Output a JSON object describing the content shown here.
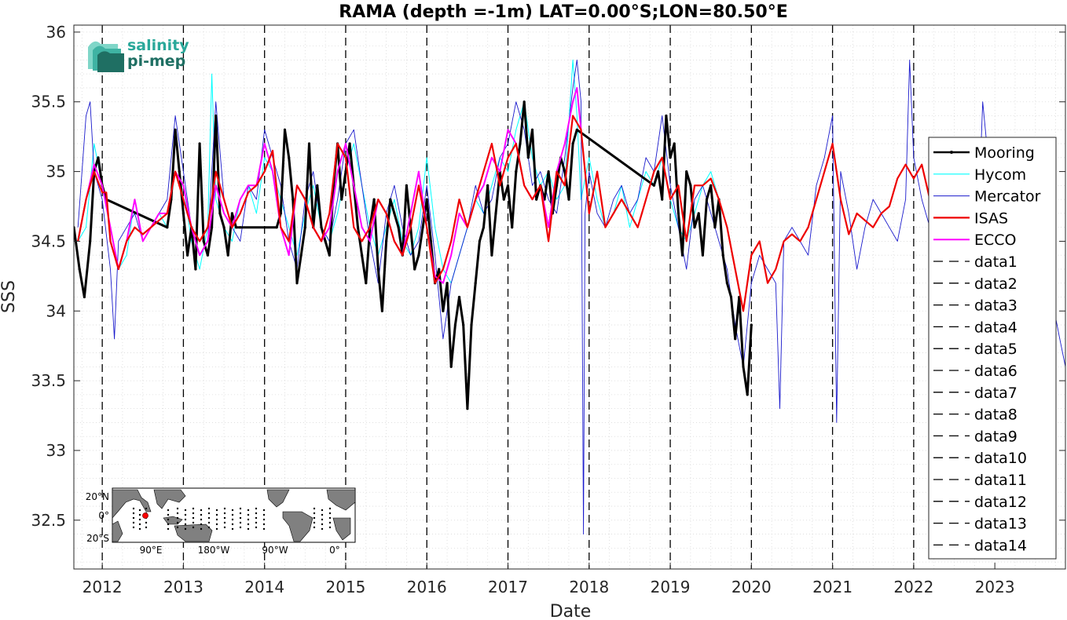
{
  "chart_data": {
    "type": "line",
    "title": "RAMA (depth =-1m) LAT=0.00°S;LON=80.50°E",
    "xlabel": "Date",
    "ylabel": "SSS",
    "xlim": [
      2011.65,
      2023.87
    ],
    "ylim": [
      32.15,
      36.05
    ],
    "x_ticks": [
      2012,
      2013,
      2014,
      2015,
      2016,
      2017,
      2018,
      2019,
      2020,
      2021,
      2022,
      2023
    ],
    "y_ticks": [
      32.5,
      33,
      33.5,
      34,
      34.5,
      35,
      35.5,
      36
    ],
    "grid": "dotted",
    "legend_placement": "right",
    "year_lines": [
      2012,
      2013,
      2014,
      2015,
      2016,
      2017,
      2018,
      2019,
      2020,
      2021,
      2022
    ],
    "series": [
      {
        "name": "Mooring",
        "color": "#000000",
        "style": "solid-dots",
        "x": [
          2011.65,
          2011.72,
          2011.78,
          2011.85,
          2011.9,
          2011.95,
          2012.0,
          2012.05,
          2012.8,
          2012.85,
          2012.9,
          2012.95,
          2013.0,
          2013.05,
          2013.1,
          2013.15,
          2013.2,
          2013.25,
          2013.3,
          2013.35,
          2013.4,
          2013.45,
          2013.5,
          2013.55,
          2013.6,
          2013.65,
          2013.7,
          2014.15,
          2014.2,
          2014.25,
          2014.3,
          2014.35,
          2014.4,
          2014.45,
          2014.5,
          2014.55,
          2014.6,
          2014.65,
          2014.7,
          2014.75,
          2014.8,
          2014.85,
          2014.9,
          2014.95,
          2015.0,
          2015.05,
          2015.1,
          2015.15,
          2015.2,
          2015.25,
          2015.3,
          2015.35,
          2015.4,
          2015.45,
          2015.5,
          2015.55,
          2015.6,
          2015.65,
          2015.7,
          2015.75,
          2015.8,
          2015.85,
          2015.9,
          2015.95,
          2016.0,
          2016.05,
          2016.1,
          2016.15,
          2016.2,
          2016.25,
          2016.3,
          2016.35,
          2016.4,
          2016.45,
          2016.5,
          2016.55,
          2016.6,
          2016.65,
          2016.7,
          2016.75,
          2016.8,
          2016.85,
          2016.9,
          2016.95,
          2017.0,
          2017.05,
          2017.1,
          2017.15,
          2017.2,
          2017.25,
          2017.3,
          2017.35,
          2017.4,
          2017.45,
          2017.5,
          2017.55,
          2017.6,
          2017.65,
          2017.7,
          2017.75,
          2017.8,
          2017.85,
          2018.8,
          2018.85,
          2018.9,
          2018.95,
          2019.0,
          2019.05,
          2019.1,
          2019.15,
          2019.2,
          2019.25,
          2019.3,
          2019.35,
          2019.4,
          2019.45,
          2019.5,
          2019.55,
          2019.6,
          2019.65,
          2019.7,
          2019.75,
          2019.8,
          2019.85,
          2019.9,
          2019.95,
          2020.0
        ],
        "values": [
          34.6,
          34.3,
          34.1,
          34.5,
          35.0,
          35.1,
          34.9,
          34.8,
          34.6,
          34.8,
          35.3,
          35.0,
          34.7,
          34.4,
          34.6,
          34.3,
          35.2,
          34.5,
          34.4,
          34.6,
          35.4,
          34.7,
          34.6,
          34.4,
          34.7,
          34.6,
          34.6,
          34.6,
          34.7,
          35.3,
          35.1,
          34.8,
          34.2,
          34.4,
          34.6,
          35.2,
          34.6,
          34.9,
          34.6,
          34.5,
          34.4,
          34.9,
          35.2,
          34.8,
          35.0,
          35.2,
          34.9,
          34.6,
          34.4,
          34.2,
          34.6,
          34.8,
          34.3,
          34.0,
          34.5,
          34.8,
          34.7,
          34.6,
          34.4,
          34.9,
          34.6,
          34.3,
          34.4,
          34.6,
          34.8,
          34.5,
          34.2,
          34.3,
          34.0,
          34.2,
          33.6,
          33.9,
          34.1,
          33.9,
          33.3,
          33.9,
          34.2,
          34.5,
          34.6,
          34.9,
          34.4,
          34.7,
          35.0,
          34.8,
          34.9,
          34.6,
          35.0,
          35.2,
          35.5,
          35.1,
          35.3,
          34.8,
          34.9,
          34.8,
          35.0,
          34.7,
          34.9,
          35.1,
          35.0,
          34.8,
          35.2,
          35.3,
          34.9,
          35.0,
          34.8,
          35.4,
          35.1,
          35.2,
          34.7,
          34.4,
          35.0,
          34.9,
          34.6,
          34.7,
          34.4,
          34.8,
          34.9,
          34.6,
          34.8,
          34.4,
          34.2,
          34.1,
          33.8,
          34.1,
          33.6,
          33.4,
          33.9
        ]
      },
      {
        "name": "Hycom",
        "color": "#00ffff",
        "style": "solid",
        "x": [
          2011.7,
          2011.8,
          2011.9,
          2012.0,
          2012.1,
          2012.2,
          2012.3,
          2012.4,
          2012.5,
          2012.6,
          2012.7,
          2012.8,
          2012.9,
          2013.0,
          2013.1,
          2013.2,
          2013.3,
          2013.35,
          2013.4,
          2013.45,
          2013.5,
          2013.6,
          2013.7,
          2013.8,
          2013.9,
          2014.0,
          2014.1,
          2014.2,
          2014.3,
          2014.4,
          2014.5,
          2014.6,
          2014.7,
          2014.8,
          2014.9,
          2015.0,
          2015.1,
          2015.2,
          2015.3,
          2015.4,
          2015.5,
          2015.6,
          2015.7,
          2015.8,
          2015.9,
          2016.0,
          2016.1,
          2016.2,
          2016.3,
          2016.4,
          2016.5,
          2016.6,
          2016.7,
          2016.8,
          2016.9,
          2017.0,
          2017.1,
          2017.2,
          2017.3,
          2017.4,
          2017.5,
          2017.6,
          2017.7,
          2017.8,
          2017.85,
          2017.9,
          2018.0,
          2018.1,
          2018.2,
          2018.3,
          2018.4,
          2018.5,
          2018.6,
          2018.7,
          2018.8,
          2018.9,
          2019.0,
          2019.1,
          2019.2,
          2019.3,
          2019.4,
          2019.5,
          2019.6,
          2019.7
        ],
        "values": [
          34.5,
          34.6,
          35.2,
          34.9,
          34.6,
          34.3,
          34.4,
          34.8,
          34.5,
          34.6,
          34.7,
          34.6,
          35.0,
          34.9,
          34.5,
          34.3,
          34.6,
          35.7,
          34.8,
          34.7,
          34.6,
          34.5,
          34.8,
          34.9,
          34.7,
          35.1,
          35.0,
          34.8,
          34.6,
          34.4,
          34.7,
          34.9,
          34.6,
          34.5,
          34.7,
          35.0,
          35.2,
          34.9,
          34.6,
          34.4,
          34.6,
          34.8,
          34.5,
          34.4,
          34.6,
          35.1,
          34.6,
          34.3,
          34.2,
          34.4,
          34.6,
          34.8,
          34.7,
          34.9,
          35.1,
          35.0,
          35.3,
          35.5,
          35.1,
          34.9,
          35.0,
          34.8,
          34.9,
          35.8,
          35.4,
          34.8,
          35.1,
          34.8,
          34.6,
          34.7,
          34.9,
          34.6,
          34.8,
          35.0,
          34.9,
          35.1,
          34.8,
          34.6,
          34.5,
          34.7,
          34.9,
          35.0,
          34.8,
          34.6
        ]
      },
      {
        "name": "Mercator",
        "color": "#1a1acc",
        "style": "solid",
        "x": [
          2011.7,
          2011.8,
          2011.85,
          2011.9,
          2012.0,
          2012.1,
          2012.15,
          2012.2,
          2012.3,
          2012.4,
          2012.5,
          2012.6,
          2012.7,
          2012.8,
          2012.9,
          2013.0,
          2013.1,
          2013.2,
          2013.3,
          2013.4,
          2013.5,
          2013.6,
          2013.7,
          2013.8,
          2013.9,
          2014.0,
          2014.1,
          2014.2,
          2014.3,
          2014.4,
          2014.5,
          2014.6,
          2014.7,
          2014.8,
          2014.9,
          2015.0,
          2015.1,
          2015.2,
          2015.3,
          2015.4,
          2015.5,
          2015.6,
          2015.7,
          2015.8,
          2015.9,
          2016.0,
          2016.1,
          2016.2,
          2016.3,
          2016.4,
          2016.5,
          2016.6,
          2016.7,
          2016.8,
          2016.9,
          2017.0,
          2017.1,
          2017.2,
          2017.3,
          2017.4,
          2017.5,
          2017.6,
          2017.7,
          2017.8,
          2017.85,
          2017.9,
          2017.93,
          2017.95,
          2018.0,
          2018.1,
          2018.2,
          2018.3,
          2018.4,
          2018.5,
          2018.6,
          2018.7,
          2018.8,
          2018.9,
          2019.0,
          2019.1,
          2019.2,
          2019.3,
          2019.4,
          2019.5,
          2019.6,
          2019.7,
          2019.8,
          2019.9,
          2020.0,
          2020.1,
          2020.2,
          2020.3,
          2020.35,
          2020.4,
          2020.5,
          2020.6,
          2020.7,
          2020.8,
          2020.9,
          2021.0,
          2021.05,
          2021.1,
          2021.2,
          2021.3,
          2021.4,
          2021.5,
          2021.6,
          2021.7,
          2021.8,
          2021.9,
          2021.95,
          2022.0,
          2022.1,
          2022.2,
          2022.3,
          2022.4,
          2022.5,
          2022.6,
          2022.7,
          2022.8,
          2022.85,
          2022.9,
          2023.0,
          2023.1,
          2023.2,
          2023.3,
          2023.4,
          2023.5,
          2023.6,
          2023.7,
          2023.8,
          2023.87
        ],
        "values": [
          34.6,
          35.4,
          35.5,
          35.0,
          34.8,
          34.3,
          33.8,
          34.5,
          34.6,
          34.7,
          34.5,
          34.6,
          34.7,
          34.8,
          35.4,
          35.0,
          34.6,
          34.4,
          34.5,
          35.5,
          34.8,
          34.6,
          34.5,
          34.9,
          34.8,
          35.3,
          35.1,
          34.9,
          34.5,
          34.3,
          34.8,
          35.0,
          34.6,
          34.5,
          34.8,
          35.2,
          35.3,
          34.9,
          34.5,
          34.2,
          34.7,
          34.9,
          34.6,
          34.4,
          34.5,
          34.9,
          34.4,
          33.8,
          34.2,
          34.4,
          34.6,
          34.9,
          34.7,
          34.8,
          35.1,
          35.2,
          35.5,
          35.3,
          34.9,
          35.0,
          34.8,
          34.7,
          35.1,
          35.6,
          35.8,
          35.5,
          32.4,
          34.7,
          35.0,
          34.7,
          34.6,
          34.8,
          34.9,
          34.7,
          34.8,
          35.1,
          35.0,
          35.4,
          34.9,
          34.6,
          34.3,
          34.8,
          34.9,
          34.7,
          34.5,
          34.3,
          33.9,
          33.6,
          34.2,
          34.4,
          34.3,
          34.2,
          33.3,
          34.5,
          34.6,
          34.5,
          34.4,
          34.9,
          35.1,
          35.4,
          33.2,
          35.0,
          34.7,
          34.3,
          34.6,
          34.8,
          34.7,
          34.6,
          34.5,
          34.8,
          35.8,
          35.1,
          34.8,
          34.6,
          34.2,
          34.7,
          35.0,
          35.1,
          34.8,
          34.7,
          35.5,
          35.2,
          34.9,
          34.8,
          35.2,
          34.6,
          34.9,
          34.8,
          34.3,
          34.1,
          33.8,
          33.6
        ]
      },
      {
        "name": "ISAS",
        "color": "#ee0000",
        "style": "solid",
        "x": [
          2011.7,
          2011.8,
          2011.9,
          2012.0,
          2012.05,
          2012.1,
          2012.2,
          2012.3,
          2012.4,
          2012.5,
          2012.6,
          2012.7,
          2012.8,
          2012.9,
          2013.0,
          2013.1,
          2013.2,
          2013.3,
          2013.4,
          2013.5,
          2013.6,
          2013.7,
          2013.8,
          2013.9,
          2014.0,
          2014.1,
          2014.2,
          2014.3,
          2014.4,
          2014.5,
          2014.6,
          2014.7,
          2014.8,
          2014.9,
          2015.0,
          2015.1,
          2015.2,
          2015.3,
          2015.4,
          2015.5,
          2015.6,
          2015.7,
          2015.8,
          2015.9,
          2016.0,
          2016.1,
          2016.2,
          2016.3,
          2016.4,
          2016.5,
          2016.6,
          2016.7,
          2016.8,
          2016.9,
          2017.0,
          2017.1,
          2017.2,
          2017.3,
          2017.4,
          2017.5,
          2017.6,
          2017.7,
          2017.8,
          2017.9,
          2018.0,
          2018.1,
          2018.2,
          2018.3,
          2018.4,
          2018.5,
          2018.6,
          2018.7,
          2018.8,
          2018.9,
          2019.0,
          2019.1,
          2019.2,
          2019.3,
          2019.4,
          2019.5,
          2019.6,
          2019.7,
          2019.8,
          2019.9,
          2020.0,
          2020.1,
          2020.2,
          2020.3,
          2020.4,
          2020.5,
          2020.6,
          2020.7,
          2020.8,
          2020.9,
          2021.0,
          2021.1,
          2021.2,
          2021.3,
          2021.4,
          2021.5,
          2021.6,
          2021.7,
          2021.8,
          2021.9,
          2022.0,
          2022.1,
          2022.2
        ],
        "values": [
          34.5,
          34.8,
          35.0,
          34.85,
          34.85,
          34.5,
          34.3,
          34.5,
          34.6,
          34.55,
          34.6,
          34.65,
          34.7,
          35.0,
          34.8,
          34.6,
          34.5,
          34.6,
          35.0,
          34.8,
          34.6,
          34.7,
          34.85,
          34.9,
          35.0,
          35.15,
          34.6,
          34.5,
          34.9,
          34.8,
          34.6,
          34.5,
          34.7,
          35.2,
          35.1,
          34.6,
          34.5,
          34.6,
          34.8,
          34.7,
          34.5,
          34.4,
          34.6,
          34.9,
          34.6,
          34.2,
          34.3,
          34.5,
          34.8,
          34.6,
          34.8,
          35.0,
          35.2,
          34.9,
          35.1,
          35.2,
          34.9,
          34.8,
          34.9,
          34.5,
          35.0,
          34.9,
          35.4,
          35.3,
          34.7,
          35.0,
          34.6,
          34.7,
          34.8,
          34.7,
          34.6,
          34.8,
          35.0,
          35.1,
          34.8,
          34.9,
          34.5,
          34.9,
          34.9,
          34.95,
          34.8,
          34.6,
          34.3,
          34.0,
          34.4,
          34.5,
          34.2,
          34.3,
          34.5,
          34.55,
          34.5,
          34.6,
          34.8,
          35.0,
          35.2,
          34.8,
          34.55,
          34.7,
          34.65,
          34.6,
          34.7,
          34.75,
          34.95,
          35.05,
          34.95,
          35.05,
          34.8
        ]
      },
      {
        "name": "ECCO",
        "color": "#ff00ff",
        "style": "solid",
        "x": [
          2011.7,
          2011.8,
          2011.9,
          2012.0,
          2012.1,
          2012.2,
          2012.3,
          2012.4,
          2012.5,
          2012.6,
          2012.7,
          2012.8,
          2012.9,
          2013.0,
          2013.1,
          2013.2,
          2013.3,
          2013.4,
          2013.5,
          2013.6,
          2013.7,
          2013.8,
          2013.9,
          2014.0,
          2014.1,
          2014.2,
          2014.3,
          2014.4,
          2014.5,
          2014.6,
          2014.7,
          2014.8,
          2014.9,
          2015.0,
          2015.1,
          2015.2,
          2015.3,
          2015.4,
          2015.5,
          2015.6,
          2015.7,
          2015.8,
          2015.9,
          2016.0,
          2016.1,
          2016.2,
          2016.3,
          2016.4,
          2016.5,
          2016.6,
          2016.7,
          2016.8,
          2016.9,
          2017.0,
          2017.1,
          2017.2,
          2017.3,
          2017.4,
          2017.5,
          2017.6,
          2017.7,
          2017.8,
          2017.85,
          2017.9
        ],
        "values": [
          34.5,
          34.8,
          35.05,
          34.9,
          34.6,
          34.3,
          34.5,
          34.8,
          34.5,
          34.6,
          34.7,
          34.7,
          35.0,
          34.9,
          34.6,
          34.4,
          34.5,
          34.9,
          34.7,
          34.6,
          34.8,
          34.9,
          34.9,
          35.2,
          35.0,
          34.6,
          34.4,
          34.9,
          34.8,
          34.6,
          34.5,
          34.6,
          35.0,
          35.2,
          34.9,
          34.6,
          34.5,
          34.8,
          34.7,
          34.5,
          34.4,
          34.7,
          35.0,
          34.6,
          34.25,
          34.2,
          34.4,
          34.7,
          34.6,
          34.8,
          34.9,
          35.1,
          35.0,
          35.3,
          35.2,
          34.9,
          34.8,
          34.9,
          34.6,
          35.0,
          35.2,
          35.5,
          35.6,
          35.3
        ]
      }
    ],
    "legend": [
      "Mooring",
      "Hycom",
      "Mercator",
      "ISAS",
      "ECCO",
      "data1",
      "data2",
      "data3",
      "data4",
      "data5",
      "data6",
      "data7",
      "data8",
      "data9",
      "data10",
      "data11",
      "data12",
      "data13",
      "data14"
    ]
  },
  "logo": {
    "line1": "salinity",
    "line2": "pi-mep"
  },
  "inset_map": {
    "lat_labels": [
      "20°N",
      "0°",
      "20°S"
    ],
    "lon_labels": [
      "90°E",
      "180°W",
      "90°W",
      "0°"
    ],
    "marker_color": "#ff0000"
  }
}
